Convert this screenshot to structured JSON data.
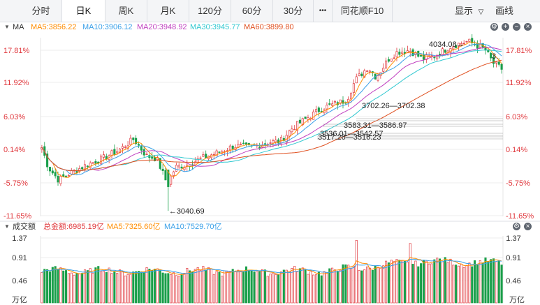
{
  "toolbar": {
    "tabs": [
      {
        "label": "分时",
        "active": false
      },
      {
        "label": "日K",
        "active": true
      },
      {
        "label": "周K",
        "active": false
      },
      {
        "label": "月K",
        "active": false
      },
      {
        "label": "120分",
        "active": false
      },
      {
        "label": "60分",
        "active": false
      },
      {
        "label": "30分",
        "active": false
      }
    ],
    "more_label": "•••",
    "f10_label": "同花顺F10",
    "display_label": "显示",
    "draw_label": "画线"
  },
  "ma_legend": {
    "title": "MA",
    "items": [
      {
        "text": "MA5:3856.22",
        "color": "#ff8c00"
      },
      {
        "text": "MA10:3906.12",
        "color": "#3aa0e8"
      },
      {
        "text": "MA20:3948.92",
        "color": "#c040c0"
      },
      {
        "text": "MA30:3945.77",
        "color": "#30c8d0"
      },
      {
        "text": "MA60:3899.80",
        "color": "#e05020"
      }
    ]
  },
  "vol_legend": {
    "title": "成交额",
    "items": [
      {
        "text": "总金额:6985.19亿",
        "color": "#e0393e"
      },
      {
        "text": "MA5:7325.60亿",
        "color": "#ff8c00"
      },
      {
        "text": "MA10:7529.70亿",
        "color": "#3aa0e8"
      }
    ]
  },
  "colors": {
    "up": "#e0393e",
    "down": "#1a9f4a",
    "ma5": "#ff8c00",
    "ma10": "#3aa0e8",
    "ma20": "#c040c0",
    "ma30": "#30c8d0",
    "ma60": "#e05020"
  },
  "chart_data": {
    "type": "candlestick",
    "price_axis": {
      "labels": [
        "17.81%",
        "11.92%",
        "6.03%",
        "0.14%",
        "-5.75%",
        "-11.65%"
      ]
    },
    "volume_axis": {
      "labels": [
        "1.37",
        "0.91",
        "0.46"
      ],
      "unit": "万亿"
    },
    "annotations": {
      "high": "4034.08",
      "low": "3040.69",
      "gap_3": "3.",
      "gaps": [
        "3702.26—3702.38",
        "3583.31—3586.97",
        "3536.01—3542.57",
        "3517.26—3516.23"
      ]
    }
  }
}
